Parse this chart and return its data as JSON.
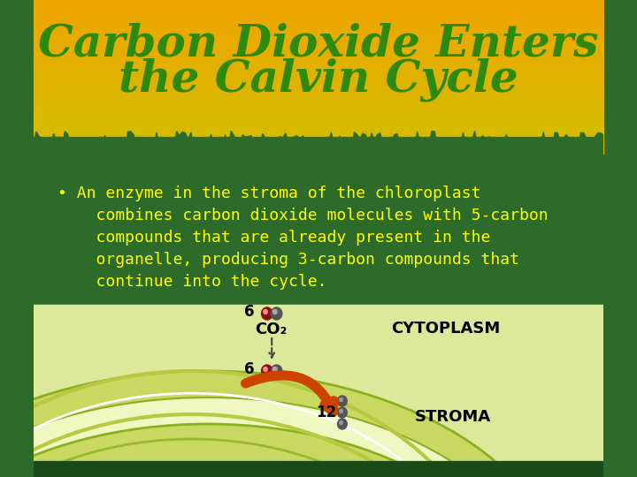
{
  "title_line1": "Carbon Dioxide Enters",
  "title_line2": "the Calvin Cycle",
  "title_color": "#2d8a0e",
  "title_bg_top": "#f0a500",
  "title_bg_bottom": "#d4a000",
  "body_bg": "#2d6b2a",
  "bullet_text": "ༀAn enzyme in the stroma of the chloroplast\n     combines carbon dioxide molecules with 5-carbon\n     compounds that are already present in the\n     organelle, producing 3-carbon compounds that\n     continue into the cycle.",
  "bullet_color": "#ffff00",
  "diagram_bg_outer": "#c8d87a",
  "diagram_bg_inner": "#e8f0a0",
  "co2_label": "CO₂",
  "cytoplasm_label": "CYTOPLASM",
  "stroma_label": "STROMA",
  "num_6_top": "6",
  "num_6_mid": "6",
  "num_12": "12",
  "footer_color": "#1a4a18"
}
